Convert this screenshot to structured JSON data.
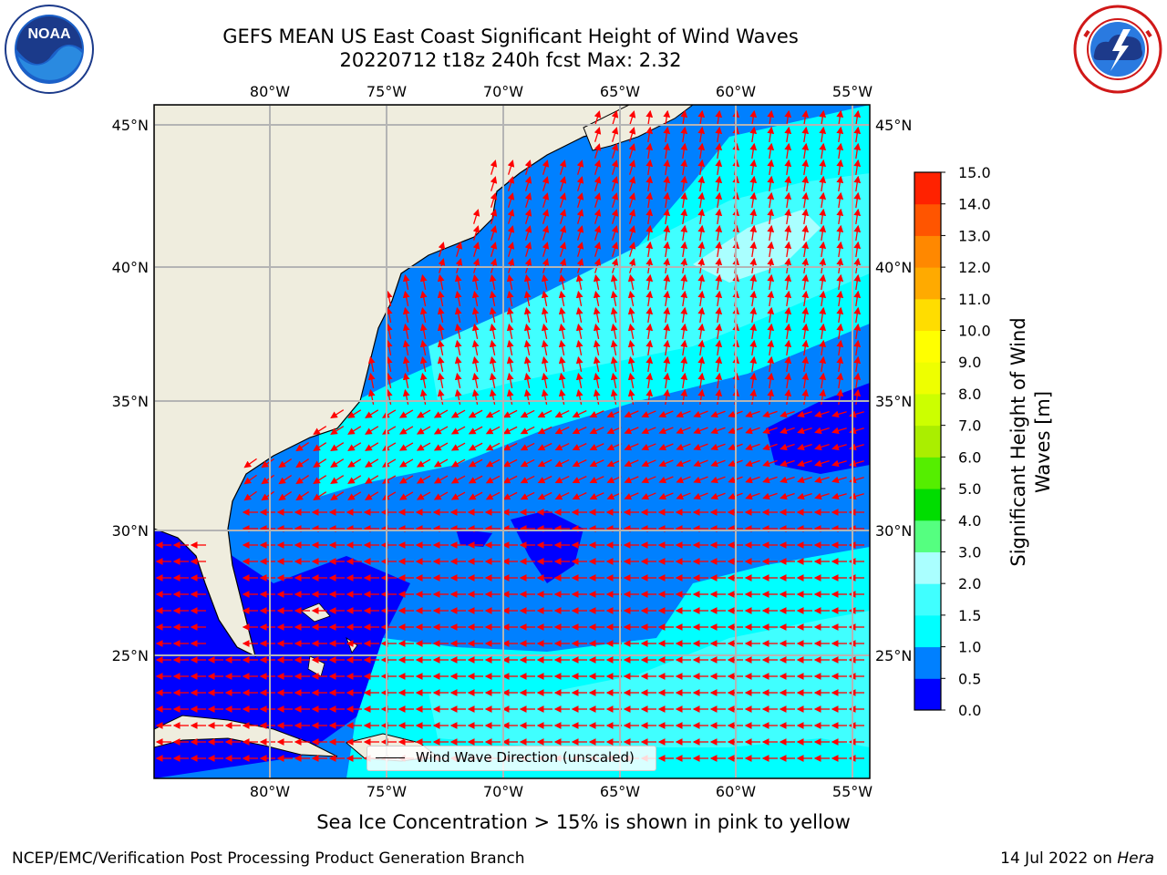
{
  "title": {
    "line1": "GEFS MEAN US East Coast Significant Height of Wind Waves",
    "line2": "20220712 t18z 240h fcst   Max: 2.32"
  },
  "logos": {
    "noaa": {
      "text": "NOAA",
      "ring_text": "NATIONAL OCEANIC AND ATMOSPHERIC ADMINISTRATION · U.S. DEPARTMENT OF COMMERCE"
    },
    "nws": {
      "ring_text": "NATIONAL WEATHER SERVICE"
    }
  },
  "map": {
    "lon_labels": [
      "80°W",
      "75°W",
      "70°W",
      "65°W",
      "60°W",
      "55°W"
    ],
    "lat_labels": [
      "45°N",
      "40°N",
      "35°N",
      "30°N",
      "25°N"
    ],
    "legend_label": "Wind Wave Direction (unscaled)",
    "colors": {
      "land": "#efedde",
      "grid": "#b4b4b4",
      "arrow": "#ff0000"
    }
  },
  "colorbar": {
    "label_line1": "Significant Height of Wind",
    "label_line2": "Waves [m]",
    "ticks": [
      "0.0",
      "0.5",
      "1.0",
      "1.5",
      "2.0",
      "3.0",
      "4.0",
      "5.0",
      "6.0",
      "7.0",
      "8.0",
      "9.0",
      "10.0",
      "11.0",
      "12.0",
      "13.0",
      "14.0",
      "15.0"
    ],
    "colors": [
      "#0000ff",
      "#0080ff",
      "#00ffff",
      "#40ffff",
      "#aaffff",
      "#55ff80",
      "#00dd00",
      "#55ee00",
      "#aaee00",
      "#ccff00",
      "#eeff00",
      "#ffff00",
      "#ffdd00",
      "#ffaa00",
      "#ff8800",
      "#ff5500",
      "#ff2200"
    ]
  },
  "footer": {
    "subtitle": "Sea Ice Concentration > 15% is shown in pink to yellow",
    "credit": "NCEP/EMC/Verification Post Processing Product Generation Branch",
    "date": "14 Jul 2022 on",
    "machine": "Hera"
  }
}
